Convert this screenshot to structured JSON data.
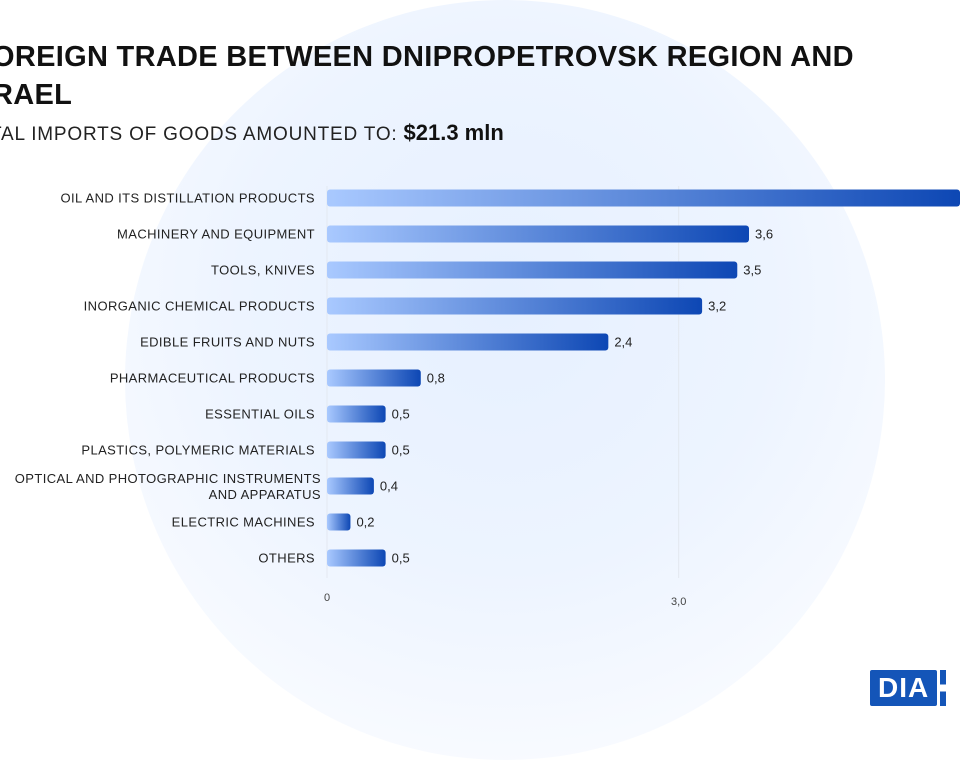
{
  "header": {
    "title": "OREIGN TRADE BETWEEN DNIPROPETROVSK REGION AND\nRAEL",
    "subtitle_label": "TAL IMPORTS OF GOODS AMOUNTED TO:",
    "subtitle_value": "$21.3 mln"
  },
  "logo": {
    "text": "DIA"
  },
  "colors": {
    "bar_start": "#a9c9ff",
    "bar_end": "#0d47b4",
    "grid": "#e3e8f0",
    "text": "#222222"
  },
  "chart_data": {
    "type": "bar",
    "orientation": "horizontal",
    "categories": [
      "OIL AND ITS DISTILLATION PRODUCTS",
      "MACHINERY AND EQUIPMENT",
      "TOOLS, KNIVES",
      "INORGANIC CHEMICAL PRODUCTS",
      "EDIBLE FRUITS AND NUTS",
      "PHARMACEUTICAL PRODUCTS",
      "ESSENTIAL OILS",
      "PLASTICS, POLYMERIC MATERIALS",
      "OPTICAL AND PHOTOGRAPHIC INSTRUMENTS AND APPARATUS",
      "ELECTRIC MACHINES",
      "OTHERS"
    ],
    "category_lines": [
      [
        "OIL AND ITS DISTILLATION PRODUCTS"
      ],
      [
        "MACHINERY AND EQUIPMENT"
      ],
      [
        "TOOLS, KNIVES"
      ],
      [
        "INORGANIC CHEMICAL PRODUCTS"
      ],
      [
        "EDIBLE FRUITS AND NUTS"
      ],
      [
        "PHARMACEUTICAL PRODUCTS"
      ],
      [
        "ESSENTIAL OILS"
      ],
      [
        "PLASTICS, POLYMERIC MATERIALS"
      ],
      [
        "OPTICAL AND PHOTOGRAPHIC INSTRUMENTS",
        "AND APPARATUS"
      ],
      [
        "ELECTRIC MACHINES"
      ],
      [
        "OTHERS"
      ]
    ],
    "values": [
      5.4,
      3.6,
      3.5,
      3.2,
      2.4,
      0.8,
      0.5,
      0.5,
      0.4,
      0.2,
      0.5
    ],
    "value_labels": [
      "",
      "3,6",
      "3,5",
      "3,2",
      "2,4",
      "0,8",
      "0,5",
      "0,5",
      "0,4",
      "0,2",
      "0,5"
    ],
    "xticks": [
      0,
      3
    ],
    "xtick_labels": [
      "0",
      "3,0"
    ],
    "xlim": [
      0,
      5.4
    ],
    "grid": true
  }
}
